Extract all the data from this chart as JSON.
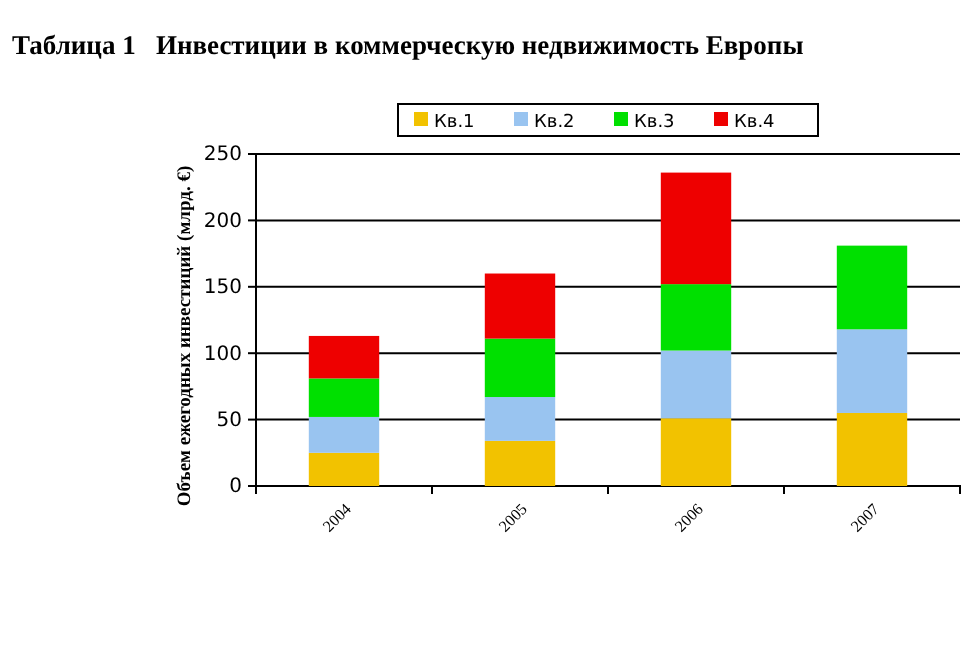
{
  "chart_data": {
    "type": "bar",
    "title": "Таблица 1   Инвестиции в коммерческую недвижимость Европы",
    "ylabel": "Объем ежегодных инвестиций (млрд. €)",
    "categories": [
      "2004",
      "2005",
      "2006",
      "2007"
    ],
    "stacked": true,
    "series": [
      {
        "name": "Кв.1",
        "color": "#f2c200",
        "values": [
          25,
          34,
          51,
          55
        ]
      },
      {
        "name": "Кв.2",
        "color": "#99c4f0",
        "values": [
          27,
          33,
          51,
          63
        ]
      },
      {
        "name": "Кв.3",
        "color": "#00e000",
        "values": [
          29,
          44,
          50,
          63
        ]
      },
      {
        "name": "Кв.4",
        "color": "#ee0000",
        "values": [
          32,
          49,
          84,
          null
        ]
      }
    ],
    "ylim": [
      0,
      250
    ],
    "yticks": [
      0,
      50,
      100,
      150,
      200,
      250
    ],
    "grid": "y",
    "legend": "top"
  }
}
